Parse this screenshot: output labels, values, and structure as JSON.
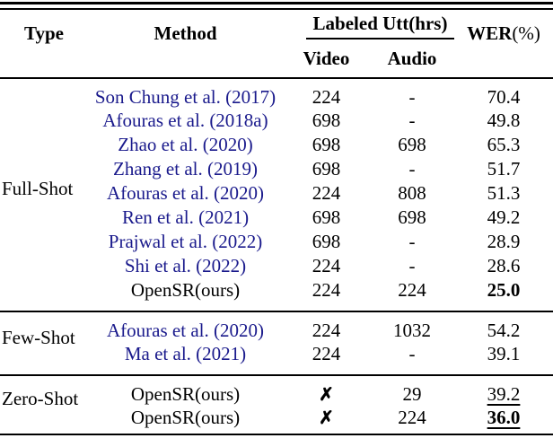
{
  "header": {
    "type": "Type",
    "method": "Method",
    "labeled_utt": "Labeled Utt(hrs)",
    "video": "Video",
    "audio": "Audio",
    "wer": "WER",
    "wer_unit": "(%)"
  },
  "sections": [
    {
      "type": "Full-Shot",
      "rows": [
        {
          "method": "Son Chung et al. (2017)",
          "video": "224",
          "audio": "-",
          "wer": "70.4"
        },
        {
          "method": "Afouras et al. (2018a)",
          "video": "698",
          "audio": "-",
          "wer": "49.8"
        },
        {
          "method": "Zhao et al. (2020)",
          "video": "698",
          "audio": "698",
          "wer": "65.3"
        },
        {
          "method": "Zhang et al. (2019)",
          "video": "698",
          "audio": "-",
          "wer": "51.7"
        },
        {
          "method": "Afouras et al. (2020)",
          "video": "224",
          "audio": "808",
          "wer": "51.3"
        },
        {
          "method": "Ren et al. (2021)",
          "video": "698",
          "audio": "698",
          "wer": "49.2"
        },
        {
          "method": "Prajwal et al. (2022)",
          "video": "698",
          "audio": "-",
          "wer": "28.9"
        },
        {
          "method": "Shi et al. (2022)",
          "video": "224",
          "audio": "-",
          "wer": "28.6"
        },
        {
          "method": "OpenSR(ours)",
          "video": "224",
          "audio": "224",
          "wer": "25.0"
        }
      ]
    },
    {
      "type": "Few-Shot",
      "rows": [
        {
          "method": "Afouras et al. (2020)",
          "video": "224",
          "audio": "1032",
          "wer": "54.2"
        },
        {
          "method": "Ma et al. (2021)",
          "video": "224",
          "audio": "-",
          "wer": "39.1"
        }
      ]
    },
    {
      "type": "Zero-Shot",
      "rows": [
        {
          "method": "OpenSR(ours)",
          "video": "✗",
          "audio": "29",
          "wer": "39.2"
        },
        {
          "method": "OpenSR(ours)",
          "video": "✗",
          "audio": "224",
          "wer": "36.0"
        }
      ]
    }
  ],
  "colors": {
    "citation": "#1a1a8c",
    "text": "#000000",
    "background": "#ffffff"
  }
}
